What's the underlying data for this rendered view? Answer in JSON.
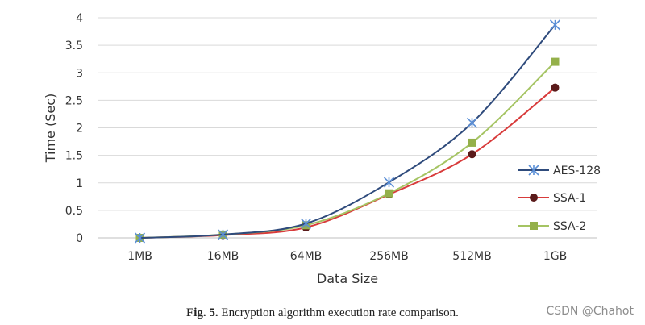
{
  "chart_data": {
    "type": "line",
    "title": "",
    "xlabel": "Data Size",
    "ylabel": "Time (Sec)",
    "categories": [
      "1MB",
      "16MB",
      "64MB",
      "256MB",
      "512MB",
      "1GB"
    ],
    "ylim": [
      0,
      4
    ],
    "yticks": [
      0,
      0.5,
      1,
      1.5,
      2,
      2.5,
      3,
      3.5,
      4
    ],
    "yticklabels": [
      "0",
      "0.5",
      "1",
      "1.5",
      "2",
      "2.5",
      "3",
      "3.5",
      "4"
    ],
    "grid": true,
    "legend_position": "right",
    "series": [
      {
        "name": "AES-128",
        "values": [
          0,
          0.06,
          0.26,
          1.01,
          2.09,
          3.87
        ],
        "color": "#2f4b7c",
        "marker": "asterisk",
        "marker_color": "#5b8fd6"
      },
      {
        "name": "SSA-1",
        "values": [
          0,
          0.05,
          0.19,
          0.79,
          1.52,
          2.73
        ],
        "color": "#d83b3b",
        "marker": "circle",
        "marker_color": "#5a1a1a"
      },
      {
        "name": "SSA-2",
        "values": [
          0,
          0.06,
          0.23,
          0.81,
          1.73,
          3.2
        ],
        "color": "#a5c463",
        "marker": "square",
        "marker_color": "#94b04a"
      }
    ]
  },
  "caption": {
    "label": "Fig. 5.",
    "text": "Encryption algorithm execution rate comparison."
  },
  "watermark": "CSDN @Chahot"
}
